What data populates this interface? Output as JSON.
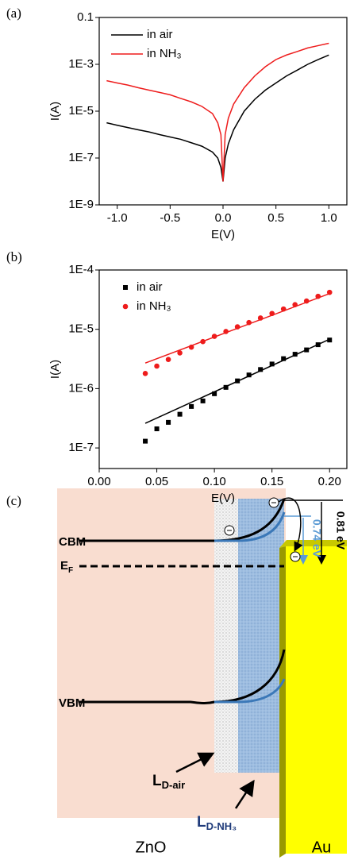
{
  "chart_data": [
    {
      "type": "line",
      "label": "(a)",
      "xlabel": "E(V)",
      "ylabel": "I(A)",
      "yscale": "log",
      "legend": "upper left",
      "xlim": [
        -1.17,
        1.17
      ],
      "ylim": [
        1e-09,
        0.1
      ],
      "xticks": [
        {
          "value": -1,
          "label": "-1.0"
        },
        {
          "value": -0.5,
          "label": "-0.5"
        },
        {
          "value": 0,
          "label": "0.0"
        },
        {
          "value": 0.5,
          "label": "0.5"
        },
        {
          "value": 1,
          "label": "1.0"
        }
      ],
      "yticks": [
        {
          "value": 1e-09,
          "label": "1E-9"
        },
        {
          "value": 1e-07,
          "label": "1E-7"
        },
        {
          "value": 1e-05,
          "label": "1E-5"
        },
        {
          "value": 0.001,
          "label": "1E-3"
        },
        0.1
      ],
      "x": [
        -1.1,
        -1.0,
        -0.9,
        -0.8,
        -0.7,
        -0.6,
        -0.5,
        -0.4,
        -0.3,
        -0.2,
        -0.1,
        -0.05,
        -0.02,
        0,
        0.02,
        0.05,
        0.1,
        0.2,
        0.3,
        0.4,
        0.5,
        0.6,
        0.7,
        0.8,
        0.9,
        1.0
      ],
      "series": [
        {
          "name": "in air",
          "color": "#000000",
          "values": [
            3.2e-06,
            2.5e-06,
            2e-06,
            1.6e-06,
            1.3e-06,
            1e-06,
            7.9e-07,
            6.3e-07,
            4.5e-07,
            3.2e-07,
            1.8e-07,
            1e-07,
            4e-08,
            1e-08,
            1e-07,
            4e-07,
            1.6e-06,
            1e-05,
            3.2e-05,
            7.9e-05,
            0.00016,
            0.00032,
            0.00056,
            0.001,
            0.0016,
            0.0025
          ]
        },
        {
          "name": "in NH₃",
          "color": "#ee1c1c",
          "values": [
            0.0002,
            0.00016,
            0.00013,
            0.0001,
            7.9e-05,
            6.3e-05,
            5e-05,
            3.5e-05,
            2.5e-05,
            1.6e-05,
            7.9e-06,
            3.2e-06,
            1e-06,
            1e-08,
            1e-06,
            5e-06,
            2e-05,
            0.0001,
            0.00032,
            0.00079,
            0.0016,
            0.0025,
            0.0035,
            0.005,
            0.0063,
            0.0079
          ]
        }
      ]
    },
    {
      "type": "scatter",
      "label": "(b)",
      "xlabel": "E(V)",
      "ylabel": "I(A)",
      "yscale": "log",
      "legend": "upper left",
      "xlim": [
        0,
        0.215
      ],
      "ylim": [
        4.5e-08,
        0.0001
      ],
      "xticks": [
        {
          "value": 0,
          "label": "0.00"
        },
        {
          "value": 0.05,
          "label": "0.05"
        },
        {
          "value": 0.1,
          "label": "0.10"
        },
        {
          "value": 0.15,
          "label": "0.15"
        },
        {
          "value": 0.2,
          "label": "0.20"
        }
      ],
      "yticks": [
        {
          "value": 1e-07,
          "label": "1E-7"
        },
        {
          "value": 1e-06,
          "label": "1E-6"
        },
        {
          "value": 1e-05,
          "label": "1E-5"
        },
        {
          "value": 0.0001,
          "label": "1E-4"
        }
      ],
      "x": [
        0.04,
        0.05,
        0.06,
        0.07,
        0.08,
        0.09,
        0.1,
        0.11,
        0.12,
        0.13,
        0.14,
        0.15,
        0.16,
        0.17,
        0.18,
        0.19,
        0.2
      ],
      "series": [
        {
          "name": "in air",
          "color": "#000000",
          "marker": "square",
          "values": [
            1.3e-07,
            2.1e-07,
            2.7e-07,
            3.7e-07,
            5e-07,
            6.2e-07,
            8.2e-07,
            1.05e-06,
            1.35e-06,
            1.7e-06,
            2.1e-06,
            2.6e-06,
            3.2e-06,
            3.8e-06,
            4.5e-06,
            5.5e-06,
            6.6e-06
          ],
          "fit_x": [
            0.04,
            0.2
          ],
          "fit_values": [
            2.6e-07,
            6.8e-06
          ]
        },
        {
          "name": "in NH₃",
          "color": "#ee1c1c",
          "marker": "circle",
          "values": [
            1.8e-06,
            2.4e-06,
            3.1e-06,
            4e-06,
            5e-06,
            6.2e-06,
            7.6e-06,
            9.2e-06,
            1.1e-05,
            1.3e-05,
            1.55e-05,
            1.85e-05,
            2.2e-05,
            2.6e-05,
            3e-05,
            3.6e-05,
            4.2e-05
          ],
          "fit_x": [
            0.04,
            0.2
          ],
          "fit_values": [
            2.7e-06,
            4e-05
          ]
        }
      ]
    }
  ],
  "diagram": {
    "label": "(c)",
    "levels": {
      "cbm": "CBM",
      "ef": {
        "main": "E",
        "sub": "F"
      },
      "vbm": "VBM"
    },
    "barrier_air": "0.81 eV",
    "barrier_nh3": "0.74 eV",
    "depletion_air": {
      "main": "L",
      "sub": "D-air"
    },
    "depletion_nh3": {
      "main": "L",
      "sub": "D-NH₃"
    },
    "materials": [
      "ZnO",
      "Au"
    ]
  }
}
